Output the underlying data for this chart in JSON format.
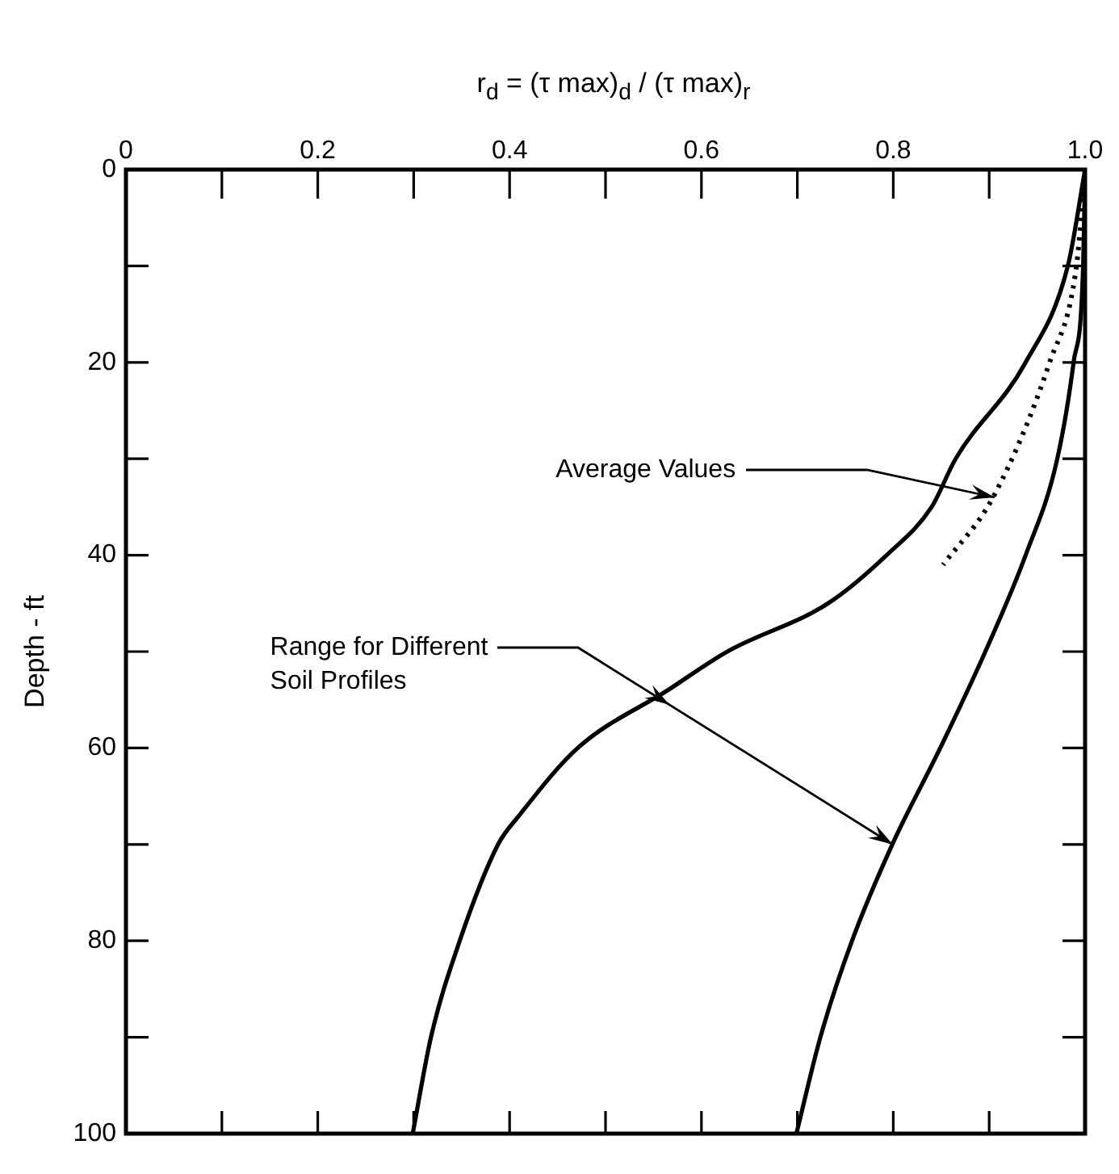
{
  "chart_data": {
    "type": "line",
    "xlabel": "r$_{d}$ = (τ max)$_{d}$ / (τ max)$_{r}$",
    "ylabel": "Depth - ft",
    "xlim": [
      0,
      1
    ],
    "xticks": [
      0,
      {
        "value": 0.1,
        "label": null
      },
      0.2,
      {
        "value": 0.3,
        "label": null
      },
      0.4,
      {
        "value": 0.5,
        "label": null
      },
      0.6,
      {
        "value": 0.7,
        "label": null
      },
      0.8,
      {
        "value": 0.9,
        "label": null
      },
      {
        "value": 1,
        "label": "1.0"
      }
    ],
    "ylim": [
      100,
      0
    ],
    "yticks": [
      0,
      {
        "value": 10,
        "label": null
      },
      20,
      {
        "value": 30,
        "label": null
      },
      40,
      {
        "value": 50,
        "label": null
      },
      60,
      {
        "value": 70,
        "label": null
      },
      80,
      {
        "value": 90,
        "label": null
      },
      100
    ],
    "grid": false,
    "legend": false,
    "marker": "none",
    "series": [
      {
        "color": "#000000",
        "line_style": "solid",
        "x": [
          1,
          0.982,
          0.938,
          0.865,
          0.84,
          0.793,
          0.732,
          0.627,
          0.565,
          0.471,
          0.41,
          0.388,
          0.348,
          0.318,
          0.299
        ],
        "values": [
          0,
          10,
          20,
          30,
          35,
          40,
          45,
          50,
          54,
          60,
          67,
          70,
          80,
          90,
          100
        ]
      },
      {
        "color": "#000000",
        "line_style": "solid",
        "x": [
          1,
          0.998,
          0.988,
          0.971,
          0.938,
          0.896,
          0.849,
          0.799,
          0.757,
          0.724,
          0.699
        ],
        "values": [
          0,
          10,
          20,
          30,
          40,
          50,
          60,
          70,
          80,
          90,
          100
        ]
      },
      {
        "color": "#000000",
        "line_style": "dotted",
        "x": [
          1,
          0.991,
          0.963,
          0.904,
          0.852
        ],
        "values": [
          0,
          10,
          20,
          34,
          41
        ]
      }
    ],
    "annotations": [
      {
        "text": "Average Values",
        "x": 0.905,
        "y": 34
      },
      {
        "text": "Range for Different Soil Profiles",
        "x": 0.8,
        "y": 70
      }
    ]
  }
}
